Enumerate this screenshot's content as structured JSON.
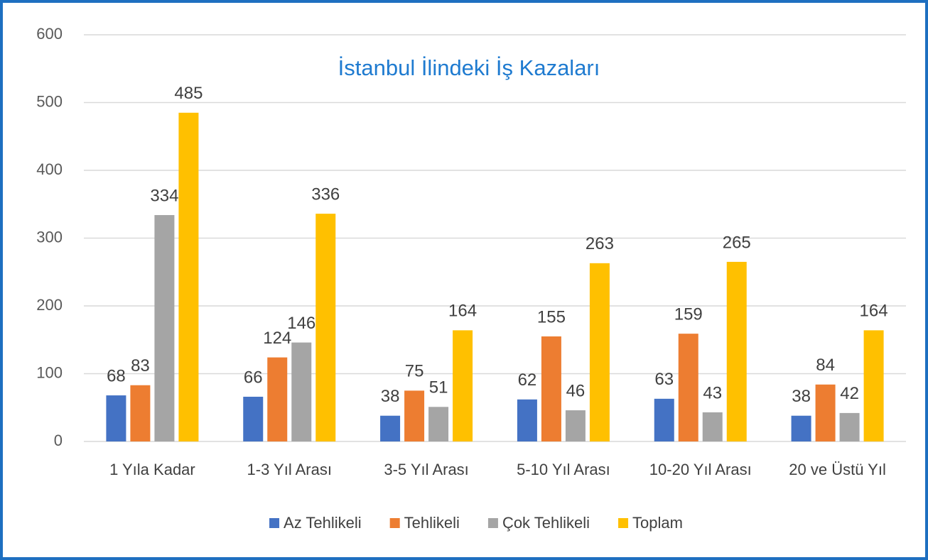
{
  "chart_data": {
    "type": "bar",
    "title": "İstanbul İlindeki İş Kazaları",
    "categories": [
      "1 Yıla Kadar",
      "1-3 Yıl Arası",
      "3-5 Yıl Arası",
      "5-10 Yıl Arası",
      "10-20 Yıl Arası",
      "20 ve Üstü Yıl"
    ],
    "series": [
      {
        "name": "Az Tehlikeli",
        "color": "#4472c4",
        "values": [
          68,
          66,
          38,
          62,
          63,
          38
        ]
      },
      {
        "name": "Tehlikeli",
        "color": "#ed7d31",
        "values": [
          83,
          124,
          75,
          155,
          159,
          84
        ]
      },
      {
        "name": "Çok Tehlikeli",
        "color": "#a5a5a5",
        "values": [
          334,
          146,
          51,
          46,
          43,
          42
        ]
      },
      {
        "name": "Toplam",
        "color": "#ffc000",
        "values": [
          485,
          336,
          164,
          263,
          265,
          164
        ]
      }
    ],
    "ylim": [
      0,
      600
    ],
    "yticks": [
      0,
      100,
      200,
      300,
      400,
      500,
      600
    ],
    "grid": true,
    "legend": "bottom"
  }
}
